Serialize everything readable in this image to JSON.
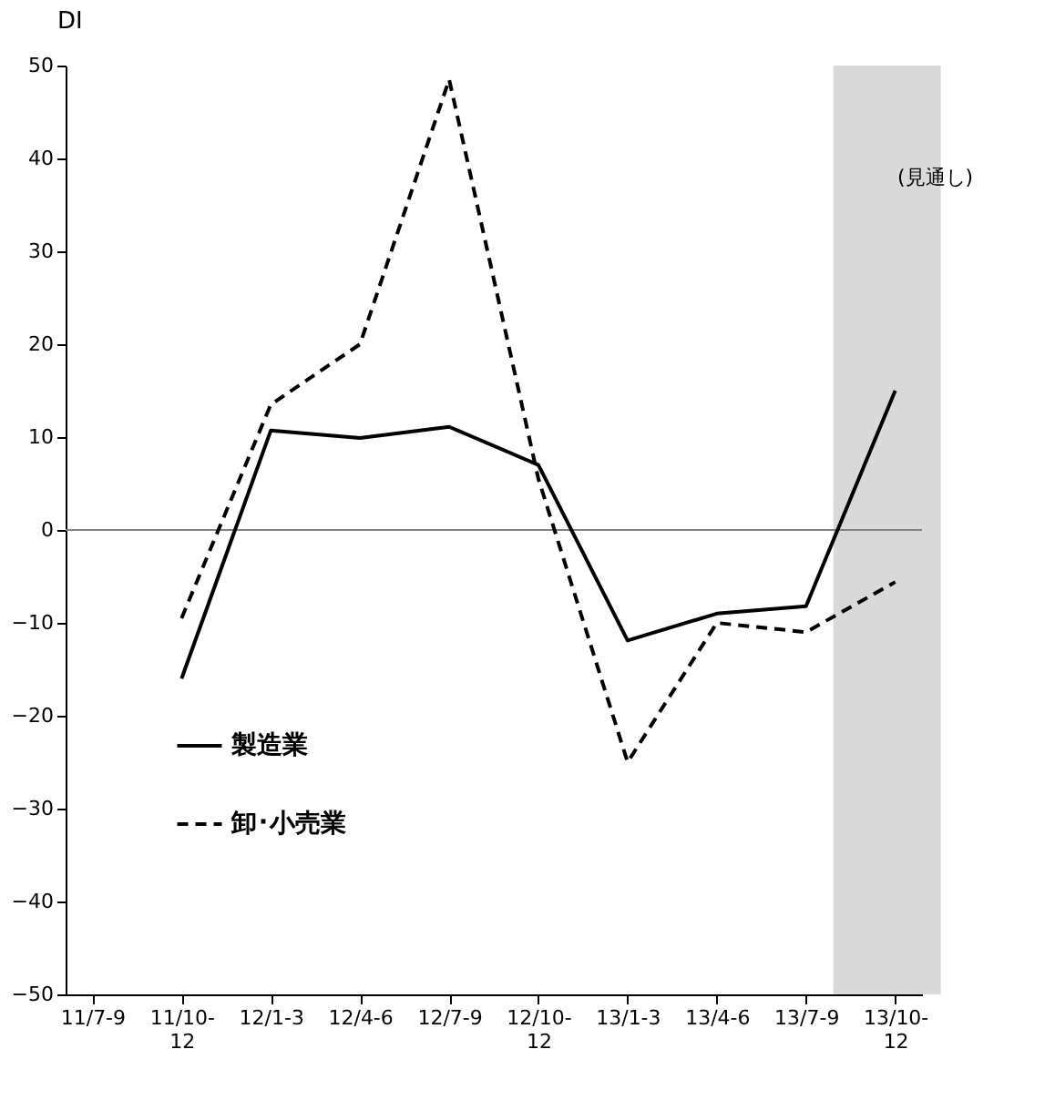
{
  "chart_data": {
    "type": "line",
    "ylabel": "DI",
    "categories": [
      "11/7-9",
      "11/10-\n12",
      "12/1-3",
      "12/4-6",
      "12/7-9",
      "12/10-\n12",
      "13/1-3",
      "13/4-6",
      "13/7-9",
      "13/10-\n12"
    ],
    "series": [
      {
        "name": "製造業",
        "color": "#000000",
        "line_style": "solid",
        "values": [
          null,
          -16,
          10.7,
          9.9,
          11.1,
          7,
          -11.9,
          -9,
          -8.2,
          15
        ]
      },
      {
        "name": "卸･小売業",
        "color": "#000000",
        "line_style": "dashed",
        "values": [
          null,
          -9.5,
          13.5,
          20,
          48.5,
          5.5,
          -25,
          -10,
          -11,
          -5.6
        ]
      }
    ],
    "ylim": [
      -50,
      50
    ],
    "yticks": [
      -50,
      -40,
      -30,
      -20,
      -10,
      0,
      10,
      20,
      30,
      40,
      50
    ],
    "ref_lines": [
      {
        "axis": "y",
        "value": 0,
        "color": "#808080"
      }
    ],
    "bands": [
      {
        "axis": "x",
        "from": "13/7-9",
        "to": "13/10-\n12",
        "label": "(見通し)",
        "color": "#d9d9d9"
      }
    ],
    "grid": false,
    "legend": "bottom left",
    "marker": "none"
  }
}
